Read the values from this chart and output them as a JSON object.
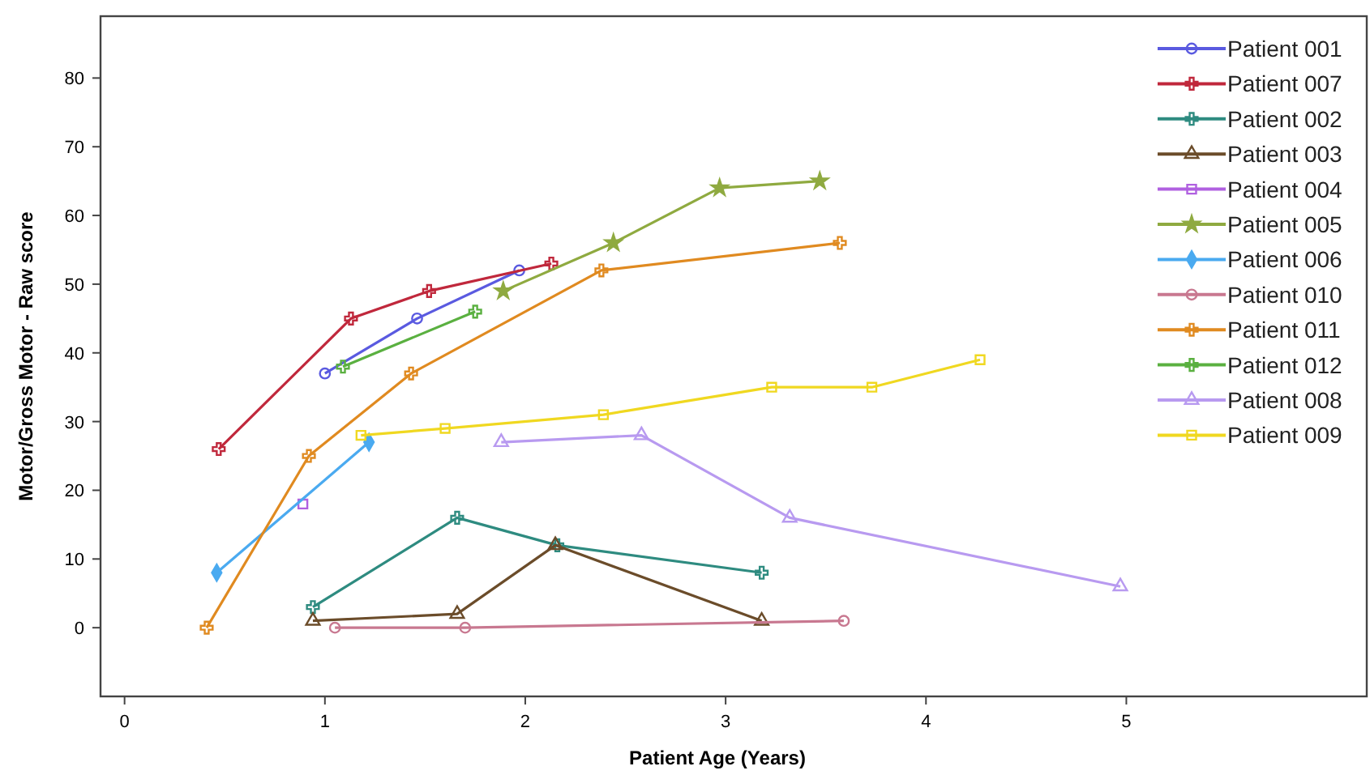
{
  "chart_data": {
    "type": "line",
    "xlabel": "Patient Age (Years)",
    "ylabel": "Motor/Gross Motor - Raw score",
    "xlim": [
      -0.12,
      6.2
    ],
    "ylim": [
      -10,
      89
    ],
    "xticks": [
      0,
      1,
      2,
      3,
      4,
      5
    ],
    "yticks": [
      0,
      10,
      20,
      30,
      40,
      50,
      60,
      70,
      80
    ],
    "grid": false,
    "legend": "top right",
    "series": [
      {
        "name": "Patient 001",
        "color": "#5a5ae0",
        "marker": "circle",
        "x": [
          1.0,
          1.46,
          1.97
        ],
        "values": [
          37,
          45,
          52
        ]
      },
      {
        "name": "Patient 007",
        "color": "#c0283c",
        "marker": "cross",
        "x": [
          0.47,
          1.13,
          1.52,
          2.13
        ],
        "values": [
          26,
          45,
          49,
          53
        ]
      },
      {
        "name": "Patient 002",
        "color": "#2e8b80",
        "marker": "cross",
        "x": [
          0.94,
          1.66,
          2.16,
          3.18
        ],
        "values": [
          3,
          16,
          12,
          8
        ]
      },
      {
        "name": "Patient 003",
        "color": "#6b4c2a",
        "marker": "triangle",
        "x": [
          0.94,
          1.66,
          2.15,
          3.18
        ],
        "values": [
          1,
          2,
          12,
          1
        ]
      },
      {
        "name": "Patient 004",
        "color": "#b060e0",
        "marker": "square",
        "x": [
          0.89
        ],
        "values": [
          18
        ]
      },
      {
        "name": "Patient 005",
        "color": "#8faa40",
        "marker": "star",
        "x": [
          1.89,
          2.44,
          2.97,
          3.47
        ],
        "values": [
          49,
          56,
          64,
          65
        ]
      },
      {
        "name": "Patient 006",
        "color": "#4aaaf0",
        "marker": "diamond",
        "x": [
          0.46,
          1.22
        ],
        "values": [
          8,
          27
        ]
      },
      {
        "name": "Patient 010",
        "color": "#c87890",
        "marker": "circle",
        "x": [
          1.05,
          1.7,
          3.59
        ],
        "values": [
          0,
          0,
          1
        ]
      },
      {
        "name": "Patient 011",
        "color": "#e08a20",
        "marker": "cross",
        "x": [
          0.41,
          0.92,
          1.43,
          2.38,
          3.57
        ],
        "values": [
          0,
          25,
          37,
          52,
          56
        ]
      },
      {
        "name": "Patient 012",
        "color": "#5ab040",
        "marker": "cross",
        "x": [
          1.09,
          1.75
        ],
        "values": [
          38,
          46
        ]
      },
      {
        "name": "Patient 008",
        "color": "#b89af0",
        "marker": "triangle",
        "x": [
          1.88,
          2.58,
          3.32,
          4.97
        ],
        "values": [
          27,
          28,
          16,
          6
        ]
      },
      {
        "name": "Patient 009",
        "color": "#f0d820",
        "marker": "square",
        "x": [
          1.18,
          1.6,
          2.39,
          3.23,
          3.73,
          4.27
        ],
        "values": [
          28,
          29,
          31,
          35,
          35,
          39
        ]
      }
    ]
  }
}
